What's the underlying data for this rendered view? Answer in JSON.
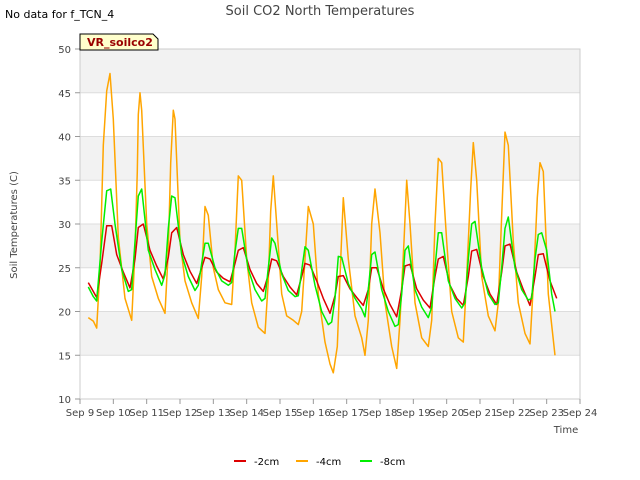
{
  "nodata_text": "No data for f_TCN_4",
  "chart_data": {
    "type": "line",
    "title": "Soil CO2 North Temperatures",
    "xlabel": "Time",
    "ylabel": "Soil Temperatures (C)",
    "xlim": [
      9,
      24
    ],
    "ylim": [
      10,
      50
    ],
    "x_ticks": [
      9,
      10,
      11,
      12,
      13,
      14,
      15,
      16,
      17,
      18,
      19,
      20,
      21,
      22,
      23,
      24
    ],
    "x_tick_labels": [
      "Sep 9",
      "Sep 10",
      "Sep 11",
      "Sep 12",
      "Sep 13",
      "Sep 14",
      "Sep 15",
      "Sep 16",
      "Sep 17",
      "Sep 18",
      "Sep 19",
      "Sep 20",
      "Sep 21",
      "Sep 22",
      "Sep 23",
      "Sep 24"
    ],
    "y_ticks": [
      10,
      15,
      20,
      25,
      30,
      35,
      40,
      45,
      50
    ],
    "y_tick_labels": [
      "10",
      "15",
      "20",
      "25",
      "30",
      "35",
      "40",
      "45",
      "50"
    ],
    "grid": true,
    "background_bands": true,
    "legend_position": "bottom-center",
    "annotation_box": {
      "text": "VR_soilco2",
      "fill": "#ffffcc",
      "text_color": "#990000"
    },
    "series": [
      {
        "name": "-2cm",
        "color": "#dd0000",
        "x": [
          9.25,
          9.5,
          9.65,
          9.8,
          9.95,
          10.1,
          10.3,
          10.5,
          10.65,
          10.75,
          10.9,
          11.1,
          11.3,
          11.5,
          11.65,
          11.75,
          11.9,
          12.1,
          12.3,
          12.5,
          12.65,
          12.75,
          12.9,
          13.1,
          13.3,
          13.5,
          13.65,
          13.75,
          13.9,
          14.1,
          14.3,
          14.5,
          14.65,
          14.75,
          14.9,
          15.1,
          15.3,
          15.5,
          15.65,
          15.75,
          15.9,
          16.1,
          16.3,
          16.5,
          16.65,
          16.75,
          16.9,
          17.1,
          17.3,
          17.5,
          17.65,
          17.75,
          17.9,
          18.1,
          18.3,
          18.5,
          18.65,
          18.75,
          18.9,
          19.1,
          19.3,
          19.5,
          19.65,
          19.75,
          19.9,
          20.1,
          20.3,
          20.5,
          20.65,
          20.75,
          20.9,
          21.1,
          21.3,
          21.5,
          21.65,
          21.75,
          21.9,
          22.1,
          22.3,
          22.5,
          22.65,
          22.75,
          22.9,
          23.1,
          23.3
        ],
        "y": [
          23.3,
          21.6,
          25.5,
          29.8,
          29.8,
          26.5,
          24.5,
          22.7,
          26,
          29.6,
          30,
          27,
          25.2,
          23.7,
          26.2,
          29,
          29.6,
          26.5,
          24.6,
          23.2,
          25,
          26.2,
          26,
          24.5,
          23.8,
          23.4,
          25.5,
          27,
          27.3,
          24.8,
          23.2,
          22.3,
          24.2,
          26,
          25.8,
          24,
          22.8,
          21.9,
          24,
          25.5,
          25.3,
          23.5,
          21.5,
          19.8,
          21.8,
          24,
          24.1,
          22.6,
          21.6,
          20.7,
          22.5,
          25,
          25,
          22.6,
          20.8,
          19.4,
          22.5,
          25.2,
          25.4,
          22.6,
          21.3,
          20.4,
          24,
          26,
          26.3,
          23,
          21.5,
          20.7,
          24,
          26.9,
          27.1,
          24,
          22,
          20.8,
          24.5,
          27.5,
          27.7,
          24.5,
          22.5,
          20.7,
          24,
          26.5,
          26.6,
          23.5,
          21.5
        ]
      },
      {
        "name": "-4cm",
        "color": "#ffa500",
        "x": [
          9.25,
          9.4,
          9.5,
          9.6,
          9.7,
          9.8,
          9.9,
          10.0,
          10.15,
          10.35,
          10.55,
          10.65,
          10.72,
          10.75,
          10.8,
          10.85,
          11.0,
          11.15,
          11.35,
          11.55,
          11.65,
          11.72,
          11.8,
          11.85,
          12.0,
          12.15,
          12.35,
          12.55,
          12.65,
          12.75,
          12.85,
          13.0,
          13.15,
          13.35,
          13.55,
          13.65,
          13.75,
          13.85,
          14.0,
          14.15,
          14.35,
          14.55,
          14.65,
          14.72,
          14.8,
          14.9,
          15.05,
          15.2,
          15.4,
          15.55,
          15.65,
          15.75,
          15.85,
          16.0,
          16.15,
          16.35,
          16.5,
          16.6,
          16.72,
          16.8,
          16.9,
          17.05,
          17.25,
          17.45,
          17.55,
          17.65,
          17.75,
          17.85,
          18.0,
          18.15,
          18.35,
          18.5,
          18.6,
          18.72,
          18.8,
          18.9,
          19.05,
          19.25,
          19.45,
          19.55,
          19.65,
          19.75,
          19.85,
          20.0,
          20.15,
          20.35,
          20.5,
          20.6,
          20.72,
          20.8,
          20.9,
          21.05,
          21.25,
          21.45,
          21.55,
          21.65,
          21.75,
          21.85,
          22.0,
          22.15,
          22.35,
          22.5,
          22.6,
          22.72,
          22.8,
          22.9,
          23.05,
          23.25
        ],
        "y": [
          19.3,
          18.9,
          18.1,
          25,
          39,
          45.2,
          47.2,
          42,
          28.5,
          21.5,
          19,
          27,
          36,
          42.5,
          45,
          43,
          30,
          24,
          21.5,
          19.8,
          27,
          37,
          43,
          42,
          28,
          23.5,
          21,
          19.2,
          24,
          32,
          31,
          25,
          22.5,
          21,
          20.8,
          27,
          35.5,
          35,
          26,
          21,
          18.2,
          17.5,
          23.5,
          31.5,
          35.5,
          30,
          22,
          19.5,
          19,
          18.5,
          20,
          26,
          32,
          30,
          22,
          16.5,
          14,
          13,
          16,
          24,
          33,
          26,
          19.5,
          17,
          15,
          19,
          30,
          34,
          29,
          21,
          16,
          13.5,
          19,
          28,
          35,
          30,
          21,
          17,
          16,
          19,
          30,
          37.5,
          37,
          28,
          20,
          17,
          16.5,
          24,
          34,
          39.3,
          35,
          24,
          19.5,
          17.8,
          21,
          31,
          40.5,
          39,
          28,
          21,
          17.5,
          16.3,
          23,
          33,
          37,
          36,
          22,
          15
        ]
      },
      {
        "name": "-8cm",
        "color": "#00ee00",
        "x": [
          9.25,
          9.4,
          9.5,
          9.65,
          9.8,
          9.92,
          10.05,
          10.25,
          10.45,
          10.55,
          10.65,
          10.75,
          10.85,
          11.05,
          11.25,
          11.45,
          11.55,
          11.65,
          11.75,
          11.85,
          12.05,
          12.25,
          12.45,
          12.55,
          12.65,
          12.75,
          12.85,
          13.05,
          13.25,
          13.45,
          13.55,
          13.65,
          13.75,
          13.85,
          14.05,
          14.25,
          14.45,
          14.55,
          14.65,
          14.75,
          14.85,
          15.05,
          15.25,
          15.45,
          15.55,
          15.65,
          15.75,
          15.85,
          16.05,
          16.25,
          16.45,
          16.55,
          16.65,
          16.75,
          16.85,
          17.05,
          17.25,
          17.45,
          17.55,
          17.65,
          17.75,
          17.85,
          18.05,
          18.25,
          18.45,
          18.55,
          18.65,
          18.75,
          18.85,
          19.05,
          19.25,
          19.45,
          19.55,
          19.65,
          19.75,
          19.85,
          20.05,
          20.25,
          20.45,
          20.55,
          20.65,
          20.75,
          20.85,
          21.05,
          21.25,
          21.45,
          21.55,
          21.65,
          21.75,
          21.85,
          22.05,
          22.25,
          22.45,
          22.55,
          22.65,
          22.75,
          22.85,
          23.0,
          23.15,
          23.25
        ],
        "y": [
          22.8,
          21.7,
          21.2,
          28,
          33.8,
          34,
          30,
          24.8,
          22.3,
          22.5,
          28,
          33.2,
          34,
          27,
          24.8,
          23,
          24.2,
          29.5,
          33.2,
          33,
          26.5,
          24,
          22.4,
          23,
          25.5,
          27.8,
          27.8,
          25,
          23.5,
          23,
          23.3,
          26.8,
          29.5,
          29.5,
          24.8,
          22.5,
          21.2,
          21.5,
          25,
          28.4,
          27.8,
          24.3,
          22.4,
          21.7,
          21.8,
          24.7,
          27.4,
          27,
          23,
          20,
          18.5,
          18.8,
          21.5,
          26.3,
          26.2,
          23.2,
          21.5,
          20.3,
          19.4,
          22.5,
          26.5,
          26.8,
          22.5,
          20,
          18.3,
          18.5,
          22,
          27,
          27.5,
          22.5,
          20.5,
          19.3,
          20.5,
          25,
          29,
          29,
          23.5,
          21.5,
          20.4,
          21,
          26,
          30,
          30.3,
          25,
          22,
          20.8,
          21,
          25,
          29.5,
          30.8,
          25,
          22.5,
          21.3,
          21.5,
          26,
          28.8,
          29,
          27,
          22,
          20
        ]
      }
    ]
  }
}
